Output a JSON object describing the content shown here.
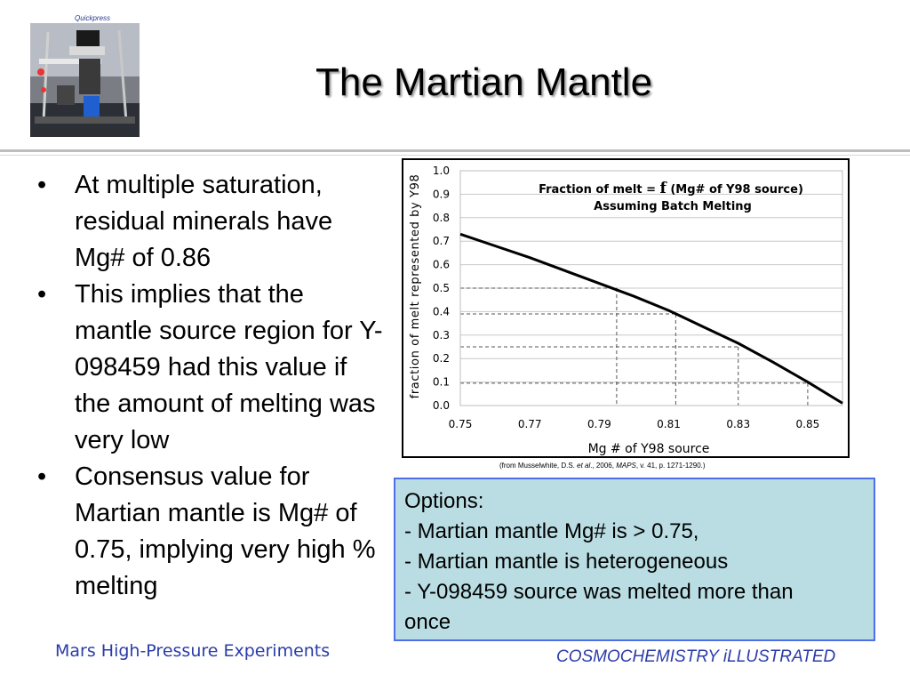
{
  "photo": {
    "label": "Quickpress"
  },
  "slide": {
    "title": "The Martian Mantle"
  },
  "bullets": [
    "At multiple saturation, residual minerals have Mg# of 0.86",
    "This implies that the mantle source region for Y-098459 had this value if the amount of melting was very low",
    "Consensus value for Martian mantle is Mg# of 0.75, implying very high % melting"
  ],
  "bullet_symbol": "•",
  "chart_data": {
    "type": "line",
    "title_line1_prefix": "Fraction of melt = ",
    "title_line1_f": "f",
    "title_line1_suffix": " (Mg# of Y98 source)",
    "title_line2": "Assuming Batch Melting",
    "xlabel": "Mg # of Y98 source",
    "ylabel": "fraction of melt represented by Y98",
    "xlim": [
      0.75,
      0.86
    ],
    "ylim": [
      0.0,
      1.0
    ],
    "xticks": [
      "0.75",
      "0.77",
      "0.79",
      "0.81",
      "0.83",
      "0.85"
    ],
    "yticks": [
      "0.0",
      "0.1",
      "0.2",
      "0.3",
      "0.4",
      "0.5",
      "0.6",
      "0.7",
      "0.8",
      "0.9",
      "1.0"
    ],
    "series": [
      {
        "x": [
          0.75,
          0.76,
          0.77,
          0.78,
          0.79,
          0.8,
          0.81,
          0.82,
          0.83,
          0.84,
          0.85,
          0.86
        ],
        "y": [
          0.73,
          0.68,
          0.63,
          0.575,
          0.52,
          0.465,
          0.405,
          0.335,
          0.265,
          0.185,
          0.1,
          0.01
        ]
      }
    ],
    "dashed_guides": [
      {
        "x": 0.795,
        "y": 0.5
      },
      {
        "x": 0.812,
        "y": 0.39
      },
      {
        "x": 0.83,
        "y": 0.25
      },
      {
        "x": 0.85,
        "y": 0.095
      }
    ]
  },
  "citation": {
    "prefix": "(from Musselwhite, D.S. ",
    "etal": "et al",
    "mid": "., 2006, ",
    "journal": "MAPS",
    "suffix": ", v. 41, p. 1271-1290.)"
  },
  "options": [
    "Options:",
    "- Martian mantle Mg# is > 0.75,",
    "- Martian mantle is heterogeneous",
    "- Y-098459 source was melted more than",
    "once"
  ],
  "footer": {
    "left": "Mars High-Pressure Experiments",
    "right": "COSMOCHEMISTRY iLLUSTRATED"
  },
  "colors": {
    "footer_text": "#2b3ca8",
    "options_bg": "#b9dde3",
    "options_border": "#4f6fe8"
  }
}
